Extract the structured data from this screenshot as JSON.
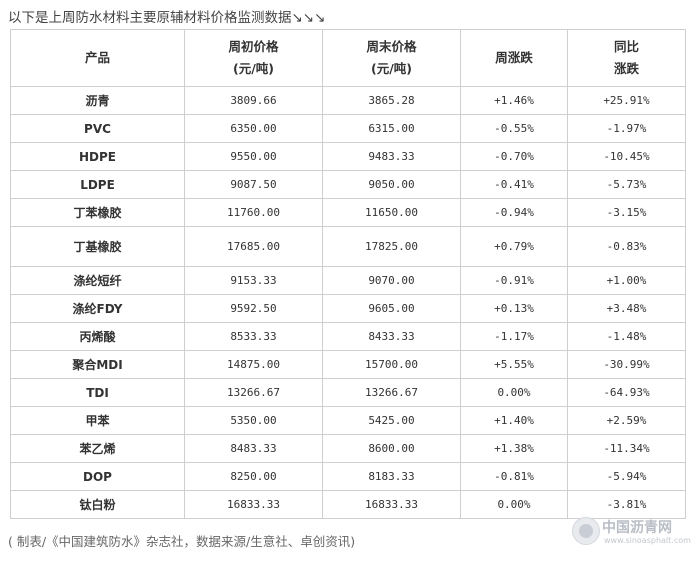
{
  "intro": "以下是上周防水材料主要原辅材料价格监测数据↘↘↘",
  "table": {
    "headers": {
      "product": "产品",
      "start_price_line1": "周初价格",
      "start_price_line2": "(元/吨)",
      "end_price_line1": "周末价格",
      "end_price_line2": "(元/吨)",
      "weekly_change": "周涨跌",
      "yoy_line1": "同比",
      "yoy_line2": "涨跌"
    },
    "rows": [
      {
        "product": "沥青",
        "start": "3809.66",
        "end": "3865.28",
        "week": "+1.46%",
        "week_trend": "up",
        "yoy": "+25.91%",
        "yoy_trend": "up"
      },
      {
        "product": "PVC",
        "start": "6350.00",
        "end": "6315.00",
        "week": "-0.55%",
        "week_trend": "down",
        "yoy": "-1.97%",
        "yoy_trend": "down"
      },
      {
        "product": "HDPE",
        "start": "9550.00",
        "end": "9483.33",
        "week": "-0.70%",
        "week_trend": "down",
        "yoy": "-10.45%",
        "yoy_trend": "down"
      },
      {
        "product": "LDPE",
        "start": "9087.50",
        "end": "9050.00",
        "week": "-0.41%",
        "week_trend": "down",
        "yoy": "-5.73%",
        "yoy_trend": "down"
      },
      {
        "product": "丁苯橡胶",
        "start": "11760.00",
        "end": "11650.00",
        "week": "-0.94%",
        "week_trend": "down",
        "yoy": "-3.15%",
        "yoy_trend": "down"
      },
      {
        "product": "丁基橡胶",
        "start": "17685.00",
        "end": "17825.00",
        "week": "+0.79%",
        "week_trend": "up",
        "yoy": "-0.83%",
        "yoy_trend": "down"
      },
      {
        "product": "涤纶短纤",
        "start": "9153.33",
        "end": "9070.00",
        "week": "-0.91%",
        "week_trend": "down",
        "yoy": "+1.00%",
        "yoy_trend": "up"
      },
      {
        "product": "涤纶FDY",
        "start": "9592.50",
        "end": "9605.00",
        "week": "+0.13%",
        "week_trend": "up",
        "yoy": "+3.48%",
        "yoy_trend": "up"
      },
      {
        "product": "丙烯酸",
        "start": "8533.33",
        "end": "8433.33",
        "week": "-1.17%",
        "week_trend": "down",
        "yoy": "-1.48%",
        "yoy_trend": "down"
      },
      {
        "product": "聚合MDI",
        "start": "14875.00",
        "end": "15700.00",
        "week": "+5.55%",
        "week_trend": "up",
        "yoy": "-30.99%",
        "yoy_trend": "down"
      },
      {
        "product": "TDI",
        "start": "13266.67",
        "end": "13266.67",
        "week": "0.00%",
        "week_trend": "flat",
        "yoy": "-64.93%",
        "yoy_trend": "down"
      },
      {
        "product": "甲苯",
        "start": "5350.00",
        "end": "5425.00",
        "week": "+1.40%",
        "week_trend": "up",
        "yoy": "+2.59%",
        "yoy_trend": "up"
      },
      {
        "product": "苯乙烯",
        "start": "8483.33",
        "end": "8600.00",
        "week": "+1.38%",
        "week_trend": "up",
        "yoy": "-11.34%",
        "yoy_trend": "down"
      },
      {
        "product": "DOP",
        "start": "8250.00",
        "end": "8183.33",
        "week": "-0.81%",
        "week_trend": "down",
        "yoy": "-5.94%",
        "yoy_trend": "down"
      },
      {
        "product": "钛白粉",
        "start": "16833.33",
        "end": "16833.33",
        "week": "0.00%",
        "week_trend": "flat",
        "yoy": "-3.81%",
        "yoy_trend": "down"
      }
    ]
  },
  "footer": "( 制表/《中国建筑防水》杂志社，数据来源/生意社、卓创资讯)",
  "watermark": {
    "name": "中国沥青网",
    "url": "www.sinoasphalt.com",
    "icon": "asphalt-logo-icon"
  },
  "colors": {
    "up": "#d0021b",
    "down": "#1a8a2e",
    "border": "#cfcfcf"
  }
}
